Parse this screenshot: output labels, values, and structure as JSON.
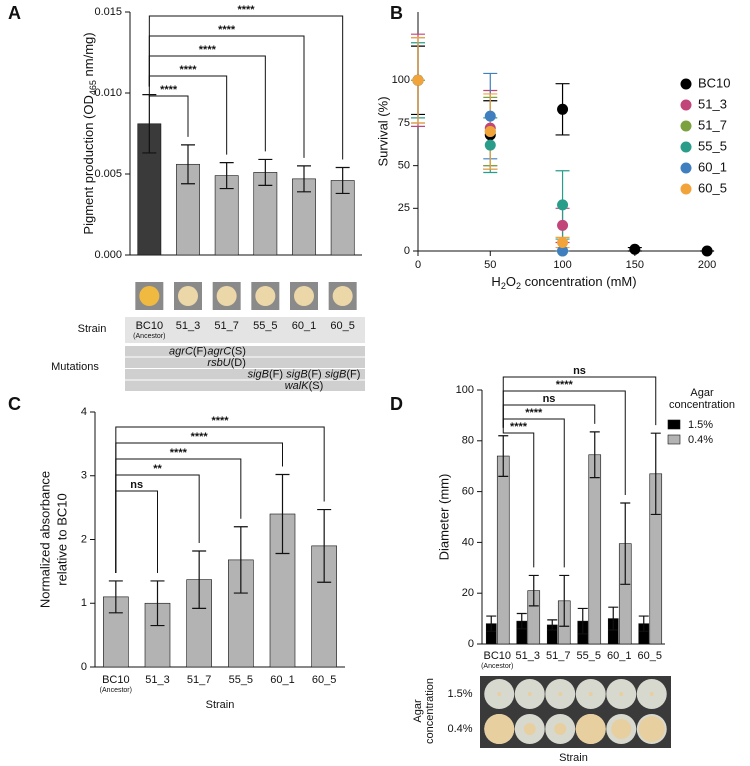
{
  "chart_data": [
    {
      "panel": "A",
      "type": "bar",
      "ylabel": [
        "Pigment production (OD",
        "465",
        " nm/mg)"
      ],
      "categories": [
        "BC10",
        "51_3",
        "51_7",
        "55_5",
        "60_1",
        "60_5"
      ],
      "category_notes": [
        "(Ancestor)",
        null,
        null,
        null,
        null,
        null
      ],
      "values": [
        0.0081,
        0.0056,
        0.0049,
        0.0051,
        0.0047,
        0.0046
      ],
      "errors": [
        0.0018,
        0.0012,
        0.0008,
        0.0008,
        0.0008,
        0.0008
      ],
      "colors": [
        "#3a3a3a",
        "#b3b3b3",
        "#b3b3b3",
        "#b3b3b3",
        "#b3b3b3",
        "#b3b3b3"
      ],
      "ylim": [
        0,
        0.015
      ],
      "yticks": [
        {
          "value": 0,
          "label": "0.000"
        },
        {
          "value": 0.005,
          "label": "0.005"
        },
        {
          "value": 0.01,
          "label": "0.010"
        },
        {
          "value": 0.015,
          "label": "0.015"
        }
      ],
      "comparisons": [
        {
          "to": 1,
          "label": "****"
        },
        {
          "to": 2,
          "label": "****"
        },
        {
          "to": 3,
          "label": "****"
        },
        {
          "to": 4,
          "label": "****"
        },
        {
          "to": 5,
          "label": "****"
        }
      ],
      "row_label": "Strain",
      "mutations_label": "Mutations",
      "mutations": [
        [
          {
            "col": 1,
            "gene": "agrC",
            "effect": "(F)"
          },
          {
            "col": 2,
            "gene": "agrC",
            "effect": "(S)"
          }
        ],
        [
          {
            "col": 2,
            "gene": "rsbU",
            "effect": "(D)"
          }
        ],
        [
          {
            "col": 3,
            "gene": "sigB",
            "effect": "(F)"
          },
          {
            "col": 4,
            "gene": "sigB",
            "effect": "(F)"
          },
          {
            "col": 5,
            "gene": "sigB",
            "effect": "(F)"
          }
        ],
        [
          {
            "col": 4,
            "gene": "walK",
            "effect": "(S)"
          }
        ]
      ]
    },
    {
      "panel": "B",
      "type": "scatter",
      "xlabel": [
        "H",
        "2",
        "O",
        "2",
        " concentration (mM)"
      ],
      "ylabel": "Survival (%)",
      "xlim": [
        0,
        202
      ],
      "xticks": [
        0,
        50,
        100,
        150,
        200
      ],
      "ylim": [
        0,
        140
      ],
      "yticks": [
        0,
        25,
        50,
        75,
        100
      ],
      "series": [
        {
          "name": "BC10",
          "color": "#000000",
          "x": [
            0,
            50,
            100,
            150,
            200
          ],
          "values": [
            100,
            68,
            83,
            1,
            0
          ],
          "errors": [
            20,
            20,
            15,
            1,
            0
          ]
        },
        {
          "name": "51_3",
          "color": "#c2457a",
          "x": [
            0,
            50,
            100
          ],
          "values": [
            100,
            72,
            15
          ],
          "errors": [
            27,
            22,
            10
          ]
        },
        {
          "name": "51_7",
          "color": "#7ba23f",
          "x": [
            0,
            50,
            100
          ],
          "values": [
            100,
            70,
            0
          ],
          "errors": [
            0,
            20,
            0
          ]
        },
        {
          "name": "55_5",
          "color": "#2a9d8a",
          "x": [
            0,
            50,
            100
          ],
          "values": [
            100,
            62,
            27
          ],
          "errors": [
            22,
            16,
            20
          ]
        },
        {
          "name": "60_1",
          "color": "#3f7fc0",
          "x": [
            0,
            50,
            100
          ],
          "values": [
            100,
            79,
            0
          ],
          "errors": [
            25,
            25,
            0
          ]
        },
        {
          "name": "60_5",
          "color": "#f2a33a",
          "x": [
            0,
            50,
            100
          ],
          "values": [
            100,
            70,
            5
          ],
          "errors": [
            25,
            22,
            3
          ]
        }
      ]
    },
    {
      "panel": "C",
      "type": "bar",
      "ylabel_lines": [
        "Normalized absorbance",
        "relative to BC10"
      ],
      "xlabel": "Strain",
      "categories": [
        "BC10",
        "51_3",
        "51_7",
        "55_5",
        "60_1",
        "60_5"
      ],
      "category_notes": [
        "(Ancestor)",
        null,
        null,
        null,
        null,
        null
      ],
      "values": [
        1.1,
        1.0,
        1.37,
        1.68,
        2.4,
        1.9
      ],
      "errors": [
        0.25,
        0.35,
        0.45,
        0.52,
        0.62,
        0.57
      ],
      "colors": [
        "#b3b3b3",
        "#b3b3b3",
        "#b3b3b3",
        "#b3b3b3",
        "#b3b3b3",
        "#b3b3b3"
      ],
      "ylim": [
        0,
        4
      ],
      "yticks": [
        0,
        1,
        2,
        3,
        4
      ],
      "comparisons": [
        {
          "to": 1,
          "label": "ns"
        },
        {
          "to": 2,
          "label": "**"
        },
        {
          "to": 3,
          "label": "****"
        },
        {
          "to": 4,
          "label": "****"
        },
        {
          "to": 5,
          "label": "****"
        }
      ]
    },
    {
      "panel": "D",
      "type": "grouped_bar",
      "ylabel": "Diameter (mm)",
      "xlabel": "Strain",
      "legend_title_lines": [
        "Agar",
        "concentration"
      ],
      "categories": [
        "BC10",
        "51_3",
        "51_7",
        "55_5",
        "60_1",
        "60_5"
      ],
      "category_notes": [
        "(Ancestor)",
        null,
        null,
        null,
        null,
        null
      ],
      "series": [
        {
          "name": "1.5%",
          "color": "#000000",
          "values": [
            8,
            9,
            7.5,
            9,
            10,
            8
          ],
          "errors": [
            3,
            3,
            2,
            5,
            4.5,
            3
          ]
        },
        {
          "name": "0.4%",
          "color": "#b3b3b3",
          "values": [
            74,
            21,
            17,
            74.5,
            39.5,
            67
          ],
          "errors": [
            8,
            6,
            10,
            9,
            16,
            16
          ]
        }
      ],
      "ylim": [
        0,
        100
      ],
      "yticks": [
        0,
        20,
        40,
        60,
        80,
        100
      ],
      "comparisons": [
        {
          "to": 1,
          "label": "****"
        },
        {
          "to": 2,
          "label": "****"
        },
        {
          "to": 3,
          "label": "ns"
        },
        {
          "to": 4,
          "label": "****"
        },
        {
          "to": 5,
          "label": "ns"
        }
      ],
      "photo_axis_lines": [
        "Agar",
        "concentration"
      ],
      "photo_rows": [
        "1.5%",
        "0.4%"
      ],
      "photo_xlabel": "Strain"
    }
  ]
}
